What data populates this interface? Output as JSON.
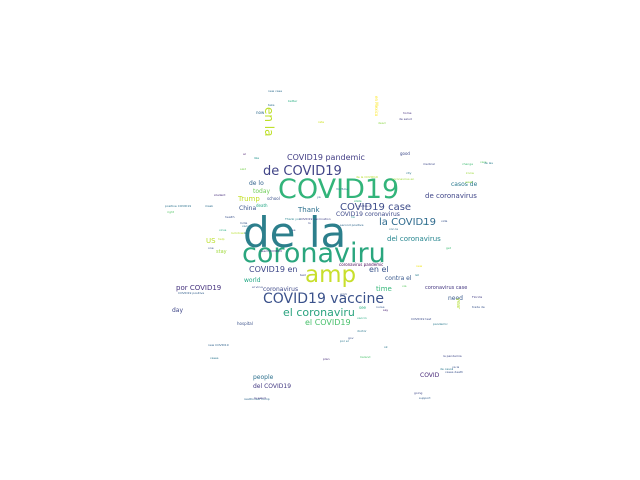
{
  "wordcloud": {
    "words": [
      {
        "text": "de la",
        "color": "#2c7f8c"
      },
      {
        "text": "coronaviru",
        "color": "#2aa67e"
      },
      {
        "text": "COVID19",
        "color": "#32b47a"
      },
      {
        "text": "amp",
        "color": "#c8df2c"
      },
      {
        "text": "COVID19 vaccine",
        "color": "#3b528b"
      },
      {
        "text": "de COVID19",
        "color": "#414487"
      },
      {
        "text": "el coronaviru",
        "color": "#2aa37f"
      },
      {
        "text": "en la",
        "color": "#bddf26"
      },
      {
        "text": "COVID19 case",
        "color": "#3e4c8a"
      },
      {
        "text": "COVID19 pandemic",
        "color": "#433e85"
      },
      {
        "text": "la COVID19",
        "color": "#2f6b8e"
      },
      {
        "text": "de coronavirus",
        "color": "#404688"
      },
      {
        "text": "COVID19 en",
        "color": "#3f4889"
      },
      {
        "text": "en el",
        "color": "#3a548c"
      },
      {
        "text": "el COVID19",
        "color": "#4ac16d"
      },
      {
        "text": "del coronavirus",
        "color": "#25858e"
      },
      {
        "text": "COVID19 coronavirus",
        "color": "#3e4a89"
      },
      {
        "text": "Thank",
        "color": "#2d708e"
      },
      {
        "text": "China",
        "color": "#3a538b"
      },
      {
        "text": "Trump",
        "color": "#c2df23"
      },
      {
        "text": "today",
        "color": "#6ece58"
      },
      {
        "text": "de lo",
        "color": "#33638d"
      },
      {
        "text": "world",
        "color": "#22a884"
      },
      {
        "text": "US",
        "color": "#bade28"
      },
      {
        "text": "por COVID19",
        "color": "#46337e"
      },
      {
        "text": "day",
        "color": "#3f4788"
      },
      {
        "text": "contra el",
        "color": "#38588c"
      },
      {
        "text": "time",
        "color": "#35b779"
      },
      {
        "text": "casos de",
        "color": "#29798e"
      },
      {
        "text": "coronavirus",
        "color": "#3e4989"
      },
      {
        "text": "coronavirus case",
        "color": "#453781"
      },
      {
        "text": "need",
        "color": "#38598c"
      },
      {
        "text": "people",
        "color": "#2d708e"
      },
      {
        "text": "del COVID19",
        "color": "#443a83"
      },
      {
        "text": "COVID",
        "color": "#482878"
      },
      {
        "text": "coronavirus pandemic",
        "color": "#440154"
      },
      {
        "text": "hospital",
        "color": "#3b528b"
      },
      {
        "text": "realDonaldTrump",
        "color": "#31688e"
      },
      {
        "text": "la pandemia",
        "color": "#3f4889"
      },
      {
        "text": "positive COVID19",
        "color": "#2c728e"
      },
      {
        "text": "COVID19 positive",
        "color": "#34608d"
      },
      {
        "text": "Thank you",
        "color": "#25838e"
      },
      {
        "text": "health",
        "color": "#3b528b"
      },
      {
        "text": "student",
        "color": "#472d7b"
      },
      {
        "text": "coronavirus en",
        "color": "#a0da39"
      },
      {
        "text": "de casos",
        "color": "#2a788e"
      },
      {
        "text": "cases death",
        "color": "#3b528b"
      },
      {
        "text": "plan",
        "color": "#472c7a"
      },
      {
        "text": "support",
        "color": "#355f8d"
      },
      {
        "text": "going",
        "color": "#3f4788"
      },
      {
        "text": "la salud",
        "color": "#443983"
      },
      {
        "text": "lockdown",
        "color": "#b5de2b"
      },
      {
        "text": "mask",
        "color": "#2e6e8e"
      },
      {
        "text": "new case",
        "color": "#2e6d8e"
      },
      {
        "text": "second positive",
        "color": "#31688e"
      },
      {
        "text": "COVID19 vaccination",
        "color": "#414387"
      },
      {
        "text": "work",
        "color": "#3a548c"
      },
      {
        "text": "home",
        "color": "#46307e"
      },
      {
        "text": "good",
        "color": "#3e4a89"
      },
      {
        "text": "vaccine",
        "color": "#2c738e"
      },
      {
        "text": "YouTube",
        "color": "#2c718e"
      },
      {
        "text": "de salud",
        "color": "#433d84"
      },
      {
        "text": "en Mexico",
        "color": "#fde725"
      },
      {
        "text": "de la COVID19",
        "color": "#b8de29"
      },
      {
        "text": "virus",
        "color": "#26ad81"
      },
      {
        "text": "right",
        "color": "#56c667"
      },
      {
        "text": "said",
        "color": "#7ad151"
      },
      {
        "text": "state",
        "color": "#35b779"
      },
      {
        "text": "week",
        "color": "#95d840"
      },
      {
        "text": "por el",
        "color": "#2a788e"
      },
      {
        "text": "vida",
        "color": "#3a548c"
      },
      {
        "text": "test",
        "color": "#3f4788"
      },
      {
        "text": "year",
        "color": "#b2dd2d"
      },
      {
        "text": "death",
        "color": "#22a785"
      },
      {
        "text": "know",
        "color": "#9bd93c"
      },
      {
        "text": "help",
        "color": "#b8de29"
      },
      {
        "text": "like",
        "color": "#20928c"
      },
      {
        "text": "live",
        "color": "#2a788e"
      },
      {
        "text": "India",
        "color": "#38598c"
      },
      {
        "text": "school",
        "color": "#3b528b"
      },
      {
        "text": "stay",
        "color": "#9fda3a"
      },
      {
        "text": "contra la",
        "color": "#404588"
      },
      {
        "text": "con la",
        "color": "#2f6c8e"
      },
      {
        "text": "new",
        "color": "#f1e51d"
      },
      {
        "text": "get",
        "color": "#3dbc74"
      },
      {
        "text": "let",
        "color": "#287c8e"
      },
      {
        "text": "one",
        "color": "#3b528b"
      },
      {
        "text": "via",
        "color": "#5ec962"
      },
      {
        "text": "say",
        "color": "#482173"
      },
      {
        "text": "see",
        "color": "#29af7f"
      },
      {
        "text": "lo",
        "color": "#3e4a89"
      },
      {
        "text": "ya",
        "color": "#34618d"
      },
      {
        "text": "ha",
        "color": "#23898e"
      },
      {
        "text": "es",
        "color": "#27808e"
      },
      {
        "text": "se",
        "color": "#3f4889"
      },
      {
        "text": "al",
        "color": "#481b6d"
      },
      {
        "text": "now",
        "color": "#2f6c8e"
      },
      {
        "text": "take",
        "color": "#2e6f8e"
      },
      {
        "text": "better",
        "color": "#26ad81"
      },
      {
        "text": "rate",
        "color": "#cde11d"
      },
      {
        "text": "dead",
        "color": "#8bd646"
      },
      {
        "text": "medical",
        "color": "#3e4989"
      },
      {
        "text": "city",
        "color": "#2a768e"
      },
      {
        "text": "change",
        "color": "#3fbc73"
      },
      {
        "text": "care",
        "color": "#5ac864"
      },
      {
        "text": "need COVID19",
        "color": "#46327e"
      },
      {
        "text": "new COVID19",
        "color": "#32658e"
      },
      {
        "text": "cases",
        "color": "#2b758e"
      },
      {
        "text": "Ireland",
        "color": "#4cc26c"
      },
      {
        "text": "nurse",
        "color": "#375b8d"
      },
      {
        "text": "vaccin",
        "color": "#25ab82"
      },
      {
        "text": "doctor",
        "color": "#2a778e"
      },
      {
        "text": "COVID19 test",
        "color": "#3d4d8a"
      },
      {
        "text": "pandemic",
        "color": "#297a8e"
      },
      {
        "text": "Florida",
        "color": "#433e85"
      },
      {
        "text": "trade de",
        "color": "#3a548c"
      },
      {
        "text": "ya la",
        "color": "#3b528b"
      },
      {
        "text": "de las",
        "color": "#287d8e"
      },
      {
        "text": "el virus",
        "color": "#3c4f8a"
      },
      {
        "text": "gov",
        "color": "#3b528b"
      },
      {
        "text": "ok",
        "color": "#2a768e"
      }
    ]
  }
}
